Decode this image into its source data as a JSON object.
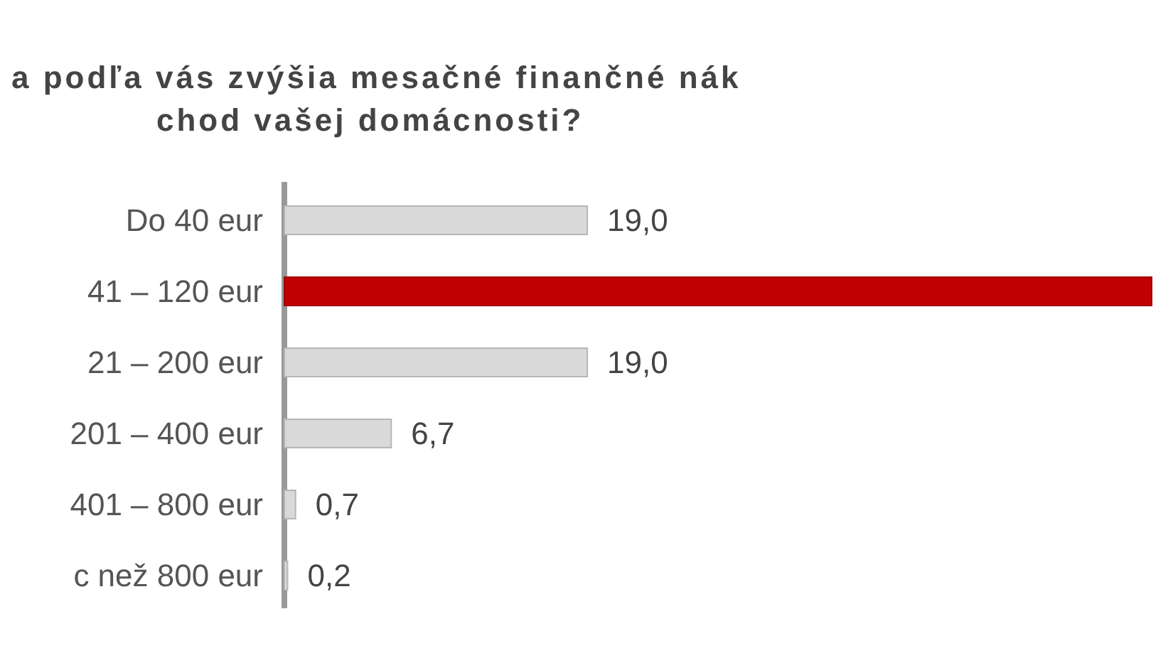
{
  "chart_data": {
    "type": "bar",
    "orientation": "horizontal",
    "title": "a podľa vás zvýšia mesačné finančné nák\nchod vašej domácnosti?",
    "categories": [
      "Do 40 eur",
      "41 – 120 eur",
      "21 – 200 eur",
      "201 – 400 eur",
      "401 – 800 eur",
      "c než 800 eur"
    ],
    "values": [
      19.0,
      54.4,
      19.0,
      6.7,
      0.7,
      0.2
    ],
    "colors": [
      "#d9d9d9",
      "#c00000",
      "#d9d9d9",
      "#d9d9d9",
      "#d9d9d9",
      "#d9d9d9"
    ],
    "value_labels": [
      "19,0",
      null,
      "19,0",
      "6,7",
      "0,7",
      "0,2"
    ]
  }
}
